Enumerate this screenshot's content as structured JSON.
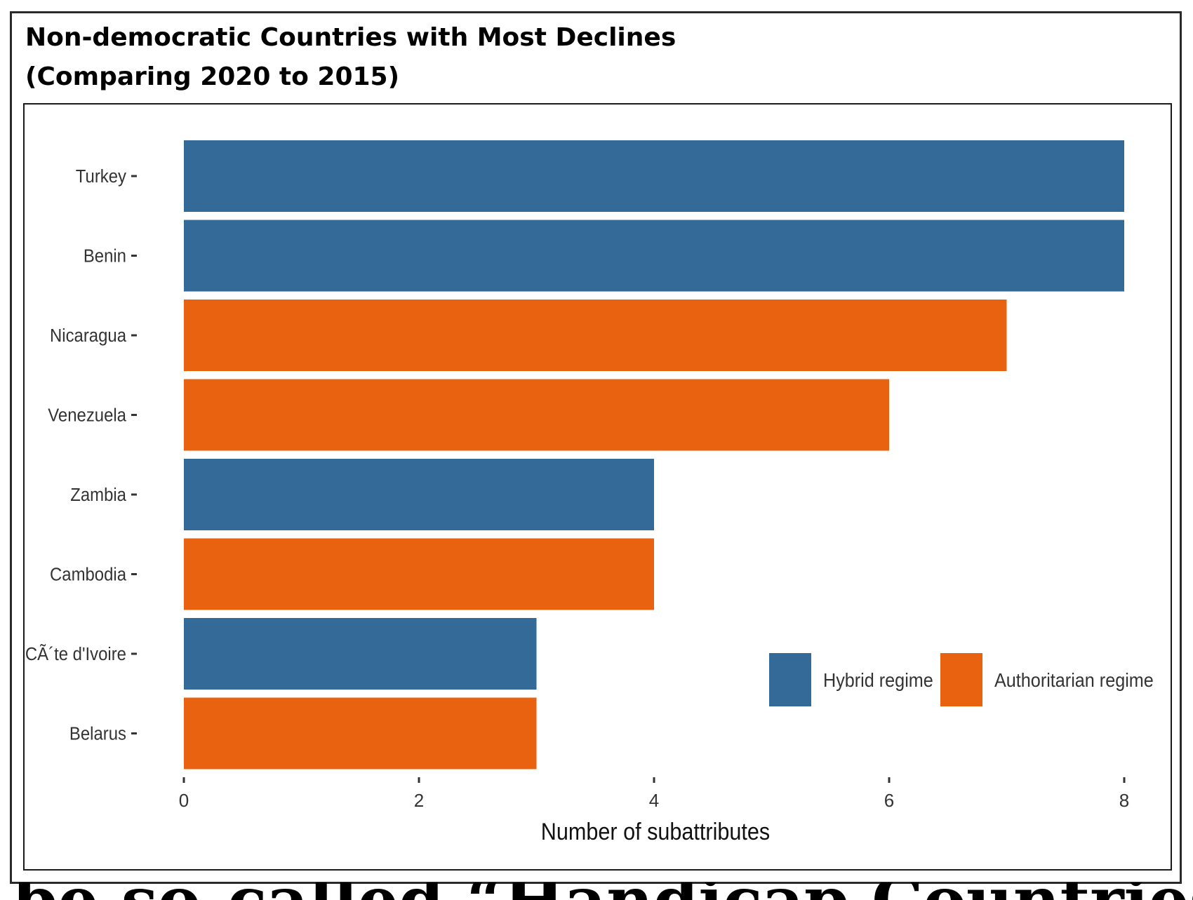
{
  "chart_data": {
    "type": "bar",
    "orientation": "horizontal",
    "title_lines": [
      "Non-democratic Countries with Most Declines",
      "(Comparing 2020 to 2015)"
    ],
    "xlabel": "Number of subattributes",
    "ylabel": "",
    "xlim": [
      0,
      8
    ],
    "xticks": [
      "0",
      "2",
      "4",
      "6",
      "8"
    ],
    "categories": [
      "Turkey",
      "Benin",
      "Nicaragua",
      "Venezuela",
      "Zambia",
      "Cambodia",
      "CÃ´te d'Ivoire",
      "Belarus"
    ],
    "values": [
      8,
      8,
      7,
      6,
      4,
      4,
      3,
      3
    ],
    "regimes": [
      "Hybrid regime",
      "Hybrid regime",
      "Authoritarian regime",
      "Authoritarian regime",
      "Hybrid regime",
      "Authoritarian regime",
      "Hybrid regime",
      "Authoritarian regime"
    ],
    "grid": false,
    "legend_position": "bottom-right, inside plot",
    "legend": [
      {
        "name": "Hybrid regime",
        "color": "#336a98"
      },
      {
        "name": "Authoritarian regime",
        "color": "#e8620f"
      }
    ]
  },
  "caption": {
    "text": "be so-called “Handicap Countries” who have"
  }
}
